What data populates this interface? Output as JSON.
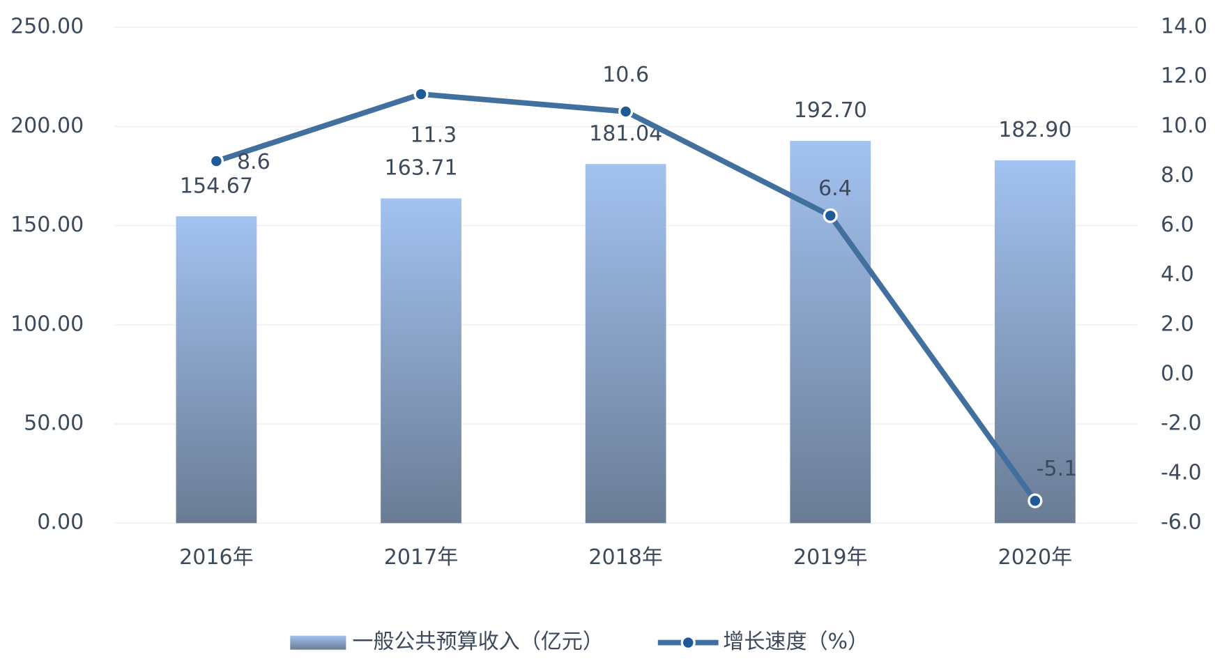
{
  "chart_data": {
    "type": "bar-line",
    "categories": [
      "2016年",
      "2017年",
      "2018年",
      "2019年",
      "2020年"
    ],
    "series": [
      {
        "name": "一般公共预算收入（亿元）",
        "type": "bar",
        "color": "#8fb0e0",
        "values": [
          154.67,
          163.71,
          181.04,
          192.7,
          182.9
        ],
        "value_labels": [
          "154.67",
          "163.71",
          "181.04",
          "192.70",
          "182.90"
        ]
      },
      {
        "name": "增长速度（%）",
        "type": "line",
        "axis": "y2",
        "color": "#41709f",
        "values": [
          8.6,
          11.3,
          10.6,
          6.4,
          -5.1
        ]
      }
    ],
    "ylim": [
      0,
      250
    ],
    "yticks": [
      {
        "value": 0,
        "label": "0.00"
      },
      {
        "value": 50,
        "label": "50.00"
      },
      {
        "value": 100,
        "label": "100.00"
      },
      {
        "value": 150,
        "label": "150.00"
      },
      {
        "value": 200,
        "label": "200.00"
      },
      {
        "value": 250,
        "label": "250.00"
      }
    ],
    "y2lim": [
      -6,
      14
    ],
    "y2ticks": [
      {
        "value": -6,
        "label": "-6.0"
      },
      {
        "value": -4,
        "label": "-4.0"
      },
      {
        "value": -2,
        "label": "-2.0"
      },
      {
        "value": 0,
        "label": "0.0"
      },
      {
        "value": 2,
        "label": "2.0"
      },
      {
        "value": 4,
        "label": "4.0"
      },
      {
        "value": 6,
        "label": "6.0"
      },
      {
        "value": 8,
        "label": "8.0"
      },
      {
        "value": 10,
        "label": "10.0"
      },
      {
        "value": 12,
        "label": "12.0"
      },
      {
        "value": 14,
        "label": "14.0"
      }
    ],
    "grid": true,
    "legend": "bottom"
  }
}
